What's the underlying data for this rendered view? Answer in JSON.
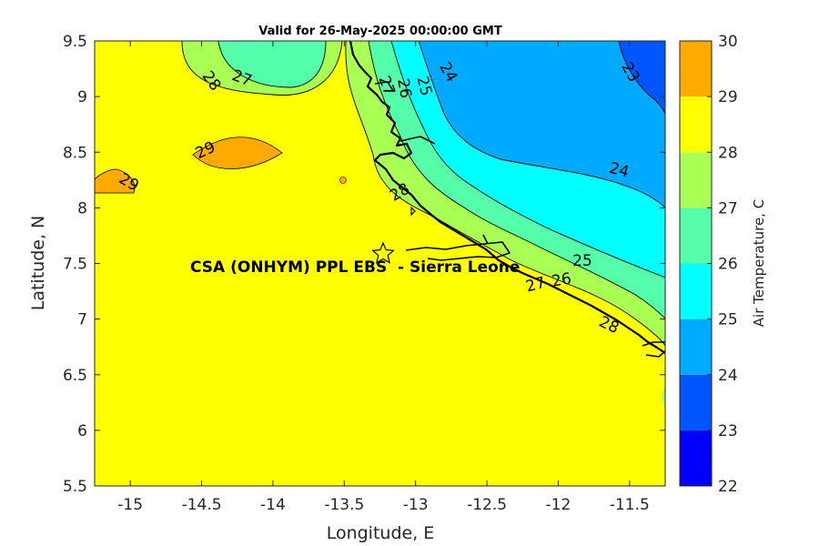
{
  "title": "Valid for 26-May-2025 00:00:00 GMT",
  "xlabel": "Longitude, E",
  "ylabel": "Latitude, N",
  "colorbar_label": "Air Temperature, C",
  "station_label": "CSA (ONHYM) PPL EBS  - Sierra Leone",
  "station_marker_icon": "star-outline-icon",
  "chart_data": {
    "type": "heatmap",
    "subtype": "filled-contour-map",
    "title": "Valid for 26-May-2025 00:00:00 GMT",
    "xlabel": "Longitude, E",
    "ylabel": "Latitude, N",
    "xlim": [
      -15.25,
      -11.25
    ],
    "ylim": [
      5.5,
      9.5
    ],
    "xticks": [
      -15,
      -14.5,
      -14,
      -13.5,
      -13,
      -12.5,
      -12,
      -11.5
    ],
    "yticks": [
      5.5,
      6,
      6.5,
      7,
      7.5,
      8,
      8.5,
      9,
      9.5
    ],
    "xtick_labels": [
      "-15",
      "-14.5",
      "-14",
      "-13.5",
      "-13",
      "-12.5",
      "-12",
      "-11.5"
    ],
    "ytick_labels": [
      "5.5",
      "6",
      "6.5",
      "7",
      "7.5",
      "8",
      "8.5",
      "9",
      "9.5"
    ],
    "colorbar": {
      "label": "Air Temperature, C",
      "levels": [
        22,
        23,
        24,
        25,
        26,
        27,
        28,
        29,
        30
      ],
      "tick_labels": [
        "22",
        "23",
        "24",
        "25",
        "26",
        "27",
        "28",
        "29",
        "30"
      ],
      "colors": [
        "#0000ff",
        "#0055ff",
        "#00aaff",
        "#00ffff",
        "#55ffaa",
        "#aaff55",
        "#ffff00",
        "#ffaa00",
        "#ff5500"
      ]
    },
    "contour_labels": [
      {
        "text": "28",
        "lon": -14.72,
        "lat": 9.17
      },
      {
        "text": "27",
        "lon": -14.23,
        "lat": 9.18
      },
      {
        "text": "29",
        "lon": -14.45,
        "lat": 8.53
      },
      {
        "text": "29",
        "lon": -15.05,
        "lat": 8.22
      },
      {
        "text": "27",
        "lon": -13.1,
        "lat": 9.1
      },
      {
        "text": "26",
        "lon": -13.05,
        "lat": 9.05
      },
      {
        "text": "25",
        "lon": -12.98,
        "lat": 9.08
      },
      {
        "text": "24",
        "lon": -12.83,
        "lat": 9.2
      },
      {
        "text": "23",
        "lon": -11.6,
        "lat": 9.2
      },
      {
        "text": "24",
        "lon": -11.72,
        "lat": 8.36
      },
      {
        "text": "28",
        "lon": -13.08,
        "lat": 8.13
      },
      {
        "text": "25",
        "lon": -11.97,
        "lat": 7.53
      },
      {
        "text": "26",
        "lon": -12.17,
        "lat": 7.33
      },
      {
        "text": "27",
        "lon": -12.35,
        "lat": 7.3
      },
      {
        "text": "28",
        "lon": -11.92,
        "lat": 6.96
      }
    ],
    "station": {
      "name": "CSA (ONHYM) PPL EBS  - Sierra Leone",
      "lon": -13.23,
      "lat": 7.6
    }
  }
}
